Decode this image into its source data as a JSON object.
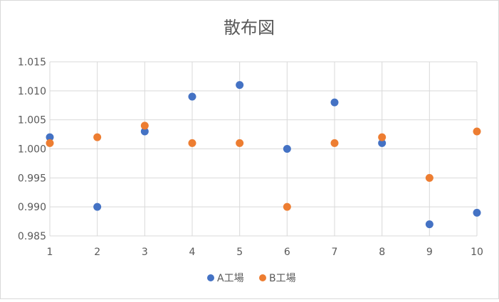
{
  "chart_data": {
    "type": "scatter",
    "title": "散布図",
    "xlabel": "",
    "ylabel": "",
    "xlim": [
      1,
      10
    ],
    "ylim": [
      0.985,
      1.015
    ],
    "x_ticks": [
      "1",
      "2",
      "3",
      "4",
      "5",
      "6",
      "7",
      "8",
      "9",
      "10"
    ],
    "y_ticks": [
      "1.015",
      "1.010",
      "1.005",
      "1.000",
      "0.995",
      "0.990",
      "0.985"
    ],
    "grid": true,
    "legend_position": "bottom",
    "series": [
      {
        "name": "A工場",
        "color": "#4472c4",
        "x": [
          1,
          2,
          3,
          4,
          5,
          6,
          7,
          8,
          9,
          10
        ],
        "values": [
          1.002,
          0.99,
          1.003,
          1.009,
          1.011,
          1.0,
          1.008,
          1.001,
          0.987,
          0.989
        ]
      },
      {
        "name": "B工場",
        "color": "#ed7d31",
        "x": [
          1,
          2,
          3,
          4,
          5,
          6,
          7,
          8,
          9,
          10
        ],
        "values": [
          1.001,
          1.002,
          1.004,
          1.001,
          1.001,
          0.99,
          1.001,
          1.002,
          0.995,
          1.003
        ]
      }
    ]
  }
}
